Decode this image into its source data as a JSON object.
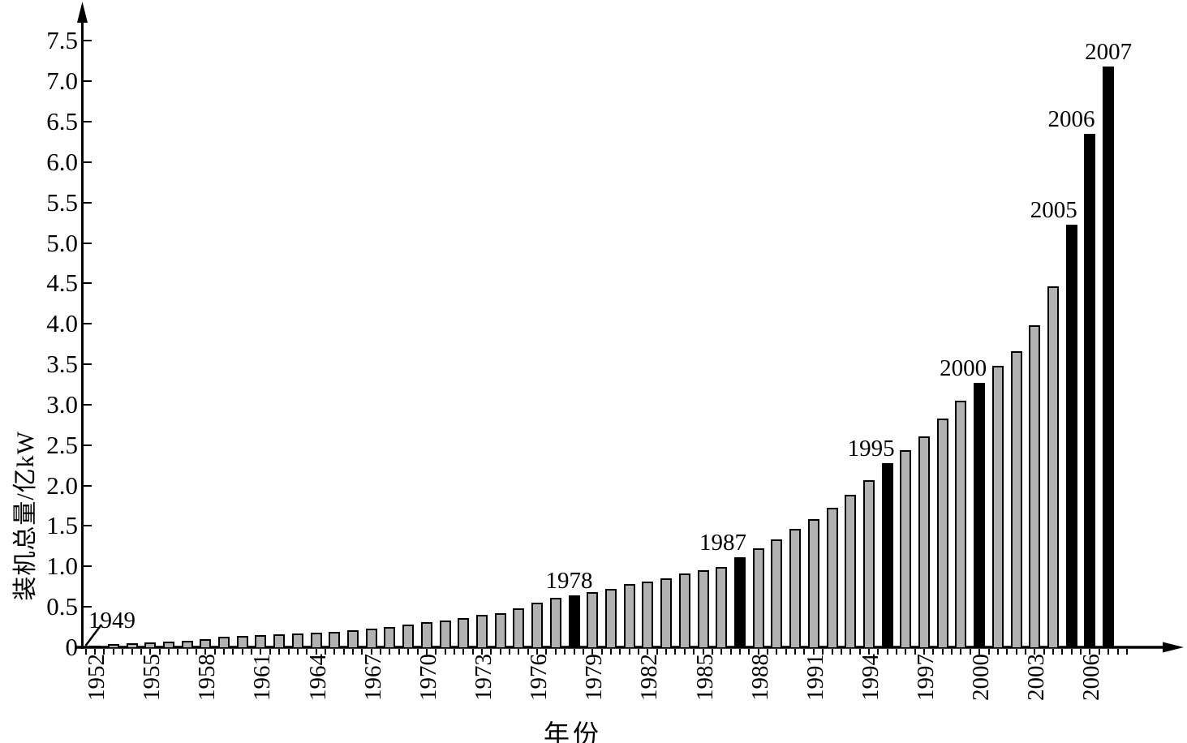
{
  "chart_data": {
    "type": "bar",
    "title": "",
    "xlabel": "年份",
    "ylabel": "装机总量/亿kW",
    "ylim": [
      0,
      7.5
    ],
    "grid": "off",
    "legend": "none",
    "y_tick_labels": [
      "0",
      "0.5",
      "1.0",
      "1.5",
      "2.0",
      "2.5",
      "3.0",
      "3.5",
      "4.0",
      "4.5",
      "5.0",
      "5.5",
      "6.0",
      "6.5",
      "7.0",
      "7.5"
    ],
    "x_tick_labels": [
      "1952",
      "1955",
      "1958",
      "1961",
      "1964",
      "1967",
      "1970",
      "1973",
      "1976",
      "1979",
      "1982",
      "1985",
      "1988",
      "1991",
      "1994",
      "1997",
      "2000",
      "2003",
      "2006"
    ],
    "years": [
      1952,
      1953,
      1954,
      1955,
      1956,
      1957,
      1958,
      1959,
      1960,
      1961,
      1962,
      1963,
      1964,
      1965,
      1966,
      1967,
      1968,
      1969,
      1970,
      1971,
      1972,
      1973,
      1974,
      1975,
      1976,
      1977,
      1978,
      1979,
      1980,
      1981,
      1982,
      1983,
      1984,
      1985,
      1986,
      1987,
      1988,
      1989,
      1990,
      1991,
      1992,
      1993,
      1994,
      1995,
      1996,
      1997,
      1998,
      1999,
      2000,
      2001,
      2002,
      2003,
      2004,
      2005,
      2006,
      2007
    ],
    "values": [
      0.02,
      0.04,
      0.05,
      0.06,
      0.07,
      0.08,
      0.1,
      0.13,
      0.14,
      0.15,
      0.16,
      0.17,
      0.18,
      0.19,
      0.21,
      0.23,
      0.25,
      0.28,
      0.31,
      0.33,
      0.36,
      0.4,
      0.42,
      0.48,
      0.55,
      0.61,
      0.64,
      0.68,
      0.72,
      0.78,
      0.81,
      0.85,
      0.91,
      0.95,
      0.99,
      1.11,
      1.22,
      1.33,
      1.46,
      1.58,
      1.73,
      1.89,
      2.07,
      2.28,
      2.44,
      2.61,
      2.83,
      3.05,
      3.27,
      3.48,
      3.66,
      3.98,
      4.46,
      5.23,
      6.35,
      7.18
    ],
    "highlighted_years": [
      1978,
      1987,
      1995,
      2000,
      2005,
      2006,
      2007
    ],
    "highlight_callouts": [
      "1978",
      "1987",
      "1995",
      "2000",
      "2005",
      "2006",
      "2007"
    ],
    "annotation": {
      "label": "1949",
      "points_to": "origin (value ≈ 0)"
    },
    "colors": {
      "bar_fill": "#b2b2b2",
      "bar_outline": "#000000",
      "highlight_fill": "#000000",
      "axis": "#000000",
      "background": "#ffffff"
    }
  }
}
